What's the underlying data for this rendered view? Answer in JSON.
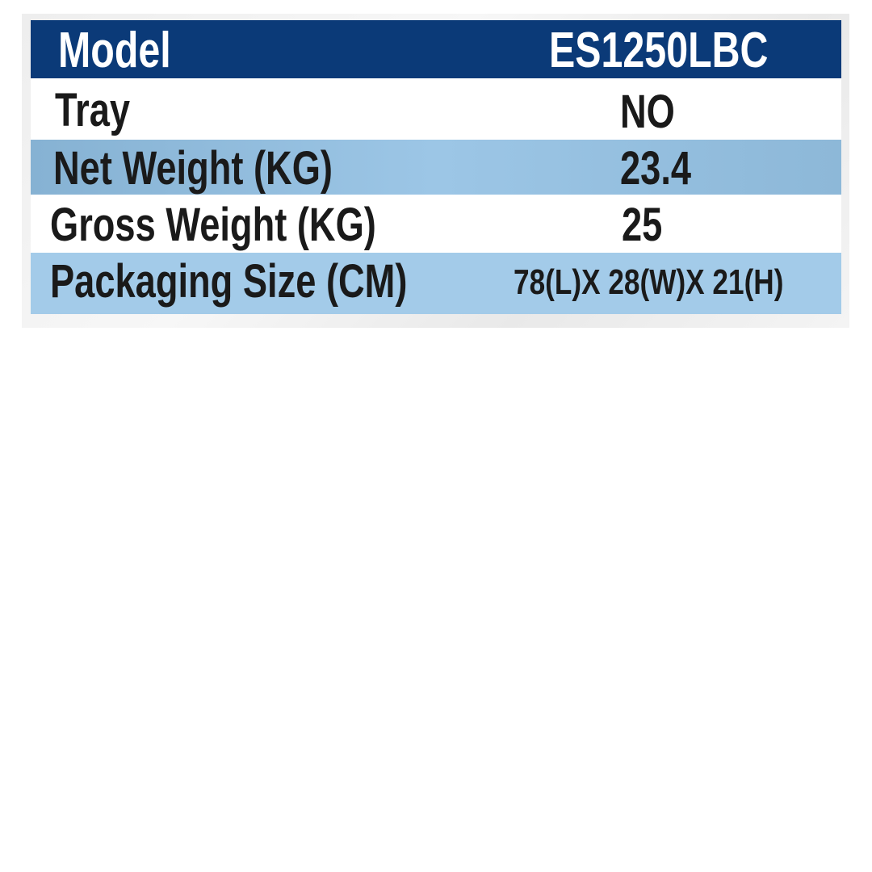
{
  "header": {
    "label": "Model",
    "value": "ES1250LBC"
  },
  "rows": [
    {
      "label": "Tray",
      "value": "NO"
    },
    {
      "label": "Net Weight (KG)",
      "value": "23.4"
    },
    {
      "label": "Gross Weight (KG)",
      "value": "25"
    },
    {
      "label": "Packaging Size (CM)",
      "value": "78(L)X 28(W)X 21(H)"
    }
  ],
  "colors": {
    "header_bg": "#0b3a78",
    "row_blue": "#8fb9d8",
    "row_light_blue": "#a3cbe9",
    "row_white": "#ffffff"
  }
}
